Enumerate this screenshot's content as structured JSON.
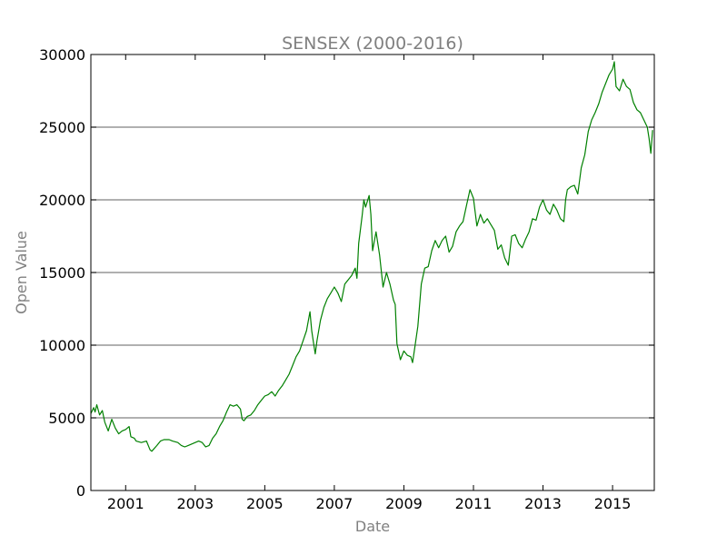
{
  "chart_data": {
    "type": "line",
    "title": "SENSEX (2000-2016)",
    "xlabel": "Date",
    "ylabel": "Open Value",
    "xlim": [
      2000.0,
      2016.2
    ],
    "ylim": [
      0,
      30000
    ],
    "x_ticks": [
      2001,
      2003,
      2005,
      2007,
      2009,
      2011,
      2013,
      2015
    ],
    "x_tick_labels": [
      "2001",
      "2003",
      "2005",
      "2007",
      "2009",
      "2011",
      "2013",
      "2015"
    ],
    "y_ticks": [
      0,
      5000,
      10000,
      15000,
      20000,
      25000,
      30000
    ],
    "y_tick_labels": [
      "0",
      "5000",
      "10000",
      "15000",
      "20000",
      "25000",
      "30000"
    ],
    "grid": "horizontal",
    "series": [
      {
        "color": "#008000",
        "x": [
          2000.0,
          2000.08,
          2000.12,
          2000.17,
          2000.25,
          2000.33,
          2000.4,
          2000.5,
          2000.6,
          2000.7,
          2000.8,
          2000.9,
          2001.0,
          2001.1,
          2001.15,
          2001.25,
          2001.3,
          2001.45,
          2001.6,
          2001.7,
          2001.75,
          2001.9,
          2002.0,
          2002.1,
          2002.25,
          2002.35,
          2002.5,
          2002.6,
          2002.7,
          2002.8,
          2002.9,
          2003.0,
          2003.1,
          2003.2,
          2003.3,
          2003.4,
          2003.5,
          2003.6,
          2003.7,
          2003.8,
          2003.9,
          2004.0,
          2004.1,
          2004.2,
          2004.3,
          2004.35,
          2004.4,
          2004.5,
          2004.6,
          2004.7,
          2004.8,
          2004.9,
          2005.0,
          2005.1,
          2005.2,
          2005.3,
          2005.4,
          2005.5,
          2005.6,
          2005.7,
          2005.8,
          2005.9,
          2006.0,
          2006.1,
          2006.2,
          2006.3,
          2006.35,
          2006.4,
          2006.45,
          2006.5,
          2006.6,
          2006.7,
          2006.8,
          2006.9,
          2007.0,
          2007.1,
          2007.2,
          2007.3,
          2007.4,
          2007.5,
          2007.6,
          2007.65,
          2007.7,
          2007.8,
          2007.85,
          2007.9,
          2008.0,
          2008.05,
          2008.1,
          2008.2,
          2008.3,
          2008.4,
          2008.5,
          2008.6,
          2008.7,
          2008.75,
          2008.8,
          2008.9,
          2009.0,
          2009.1,
          2009.2,
          2009.25,
          2009.3,
          2009.4,
          2009.5,
          2009.6,
          2009.7,
          2009.8,
          2009.9,
          2010.0,
          2010.1,
          2010.2,
          2010.3,
          2010.4,
          2010.5,
          2010.6,
          2010.7,
          2010.8,
          2010.9,
          2011.0,
          2011.1,
          2011.2,
          2011.3,
          2011.4,
          2011.5,
          2011.6,
          2011.7,
          2011.8,
          2011.9,
          2012.0,
          2012.1,
          2012.2,
          2012.3,
          2012.4,
          2012.5,
          2012.6,
          2012.7,
          2012.8,
          2012.9,
          2013.0,
          2013.1,
          2013.2,
          2013.3,
          2013.4,
          2013.5,
          2013.6,
          2013.65,
          2013.7,
          2013.8,
          2013.9,
          2014.0,
          2014.1,
          2014.2,
          2014.3,
          2014.4,
          2014.5,
          2014.6,
          2014.7,
          2014.8,
          2014.9,
          2015.0,
          2015.05,
          2015.1,
          2015.2,
          2015.3,
          2015.4,
          2015.5,
          2015.6,
          2015.7,
          2015.8,
          2015.9,
          2016.0,
          2016.05,
          2016.1,
          2016.15
        ],
        "y": [
          5300,
          5700,
          5400,
          5900,
          5200,
          5500,
          4700,
          4100,
          4900,
          4300,
          3900,
          4100,
          4200,
          4400,
          3700,
          3600,
          3400,
          3300,
          3400,
          2800,
          2700,
          3100,
          3400,
          3500,
          3500,
          3400,
          3300,
          3100,
          3000,
          3100,
          3200,
          3300,
          3400,
          3300,
          3000,
          3100,
          3600,
          3900,
          4400,
          4800,
          5400,
          5900,
          5800,
          5900,
          5600,
          4900,
          4800,
          5100,
          5200,
          5500,
          5900,
          6200,
          6500,
          6600,
          6800,
          6500,
          6900,
          7200,
          7600,
          8000,
          8600,
          9200,
          9600,
          10300,
          11000,
          12300,
          11000,
          10200,
          9400,
          10300,
          11700,
          12600,
          13200,
          13600,
          14000,
          13600,
          13000,
          14200,
          14500,
          14800,
          15300,
          14600,
          17000,
          18900,
          20000,
          19500,
          20300,
          19000,
          16500,
          17800,
          16200,
          14000,
          15000,
          14200,
          13100,
          12800,
          10100,
          9000,
          9600,
          9300,
          9200,
          8800,
          9600,
          11300,
          14200,
          15300,
          15400,
          16500,
          17200,
          16700,
          17200,
          17500,
          16400,
          16800,
          17800,
          18200,
          18500,
          19600,
          20700,
          20100,
          18200,
          19000,
          18400,
          18700,
          18300,
          17900,
          16600,
          16900,
          16000,
          15500,
          17500,
          17600,
          17000,
          16700,
          17300,
          17800,
          18700,
          18600,
          19500,
          20000,
          19300,
          19000,
          19700,
          19300,
          18700,
          18500,
          20000,
          20700,
          20900,
          21000,
          20400,
          22200,
          23100,
          24700,
          25500,
          26000,
          26600,
          27400,
          28000,
          28600,
          29000,
          29500,
          27800,
          27500,
          28300,
          27800,
          27600,
          26700,
          26200,
          26000,
          25500,
          25000,
          24200,
          23200,
          24800
        ]
      }
    ]
  }
}
